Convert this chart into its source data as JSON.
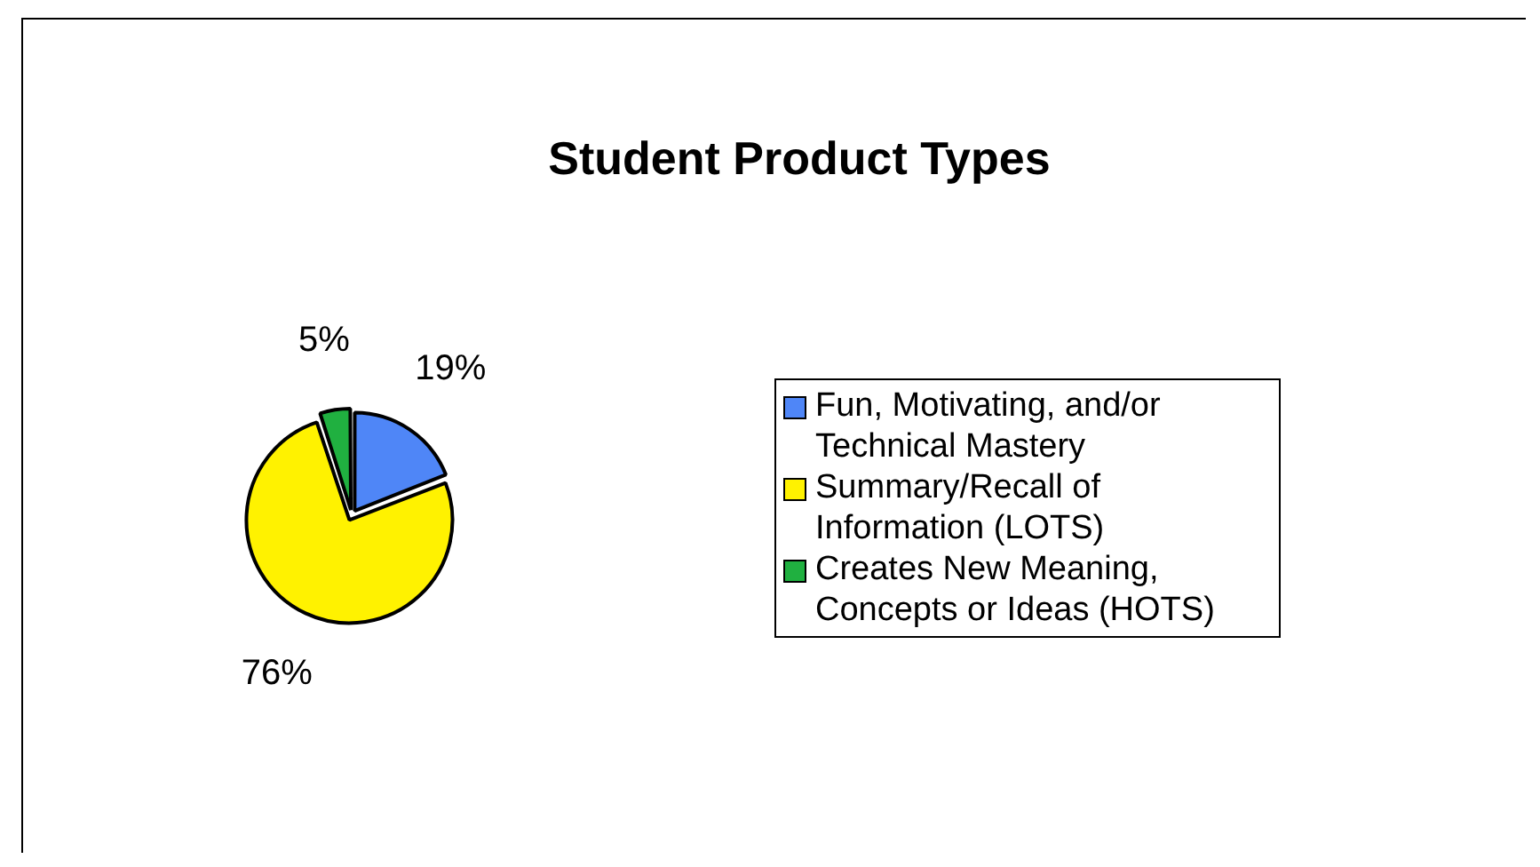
{
  "chart_data": {
    "type": "pie",
    "title": "Student Product Types",
    "categories": [
      "Fun, Motivating, and/or Technical Mastery",
      "Summary/Recall of Information (LOTS)",
      "Creates New Meaning, Concepts or Ideas (HOTS)"
    ],
    "values": [
      19,
      76,
      5
    ],
    "colors": [
      "#4f86f7",
      "#fff200",
      "#20b040"
    ],
    "value_labels": [
      "19%",
      "76%",
      "5%"
    ],
    "legend": "right"
  }
}
